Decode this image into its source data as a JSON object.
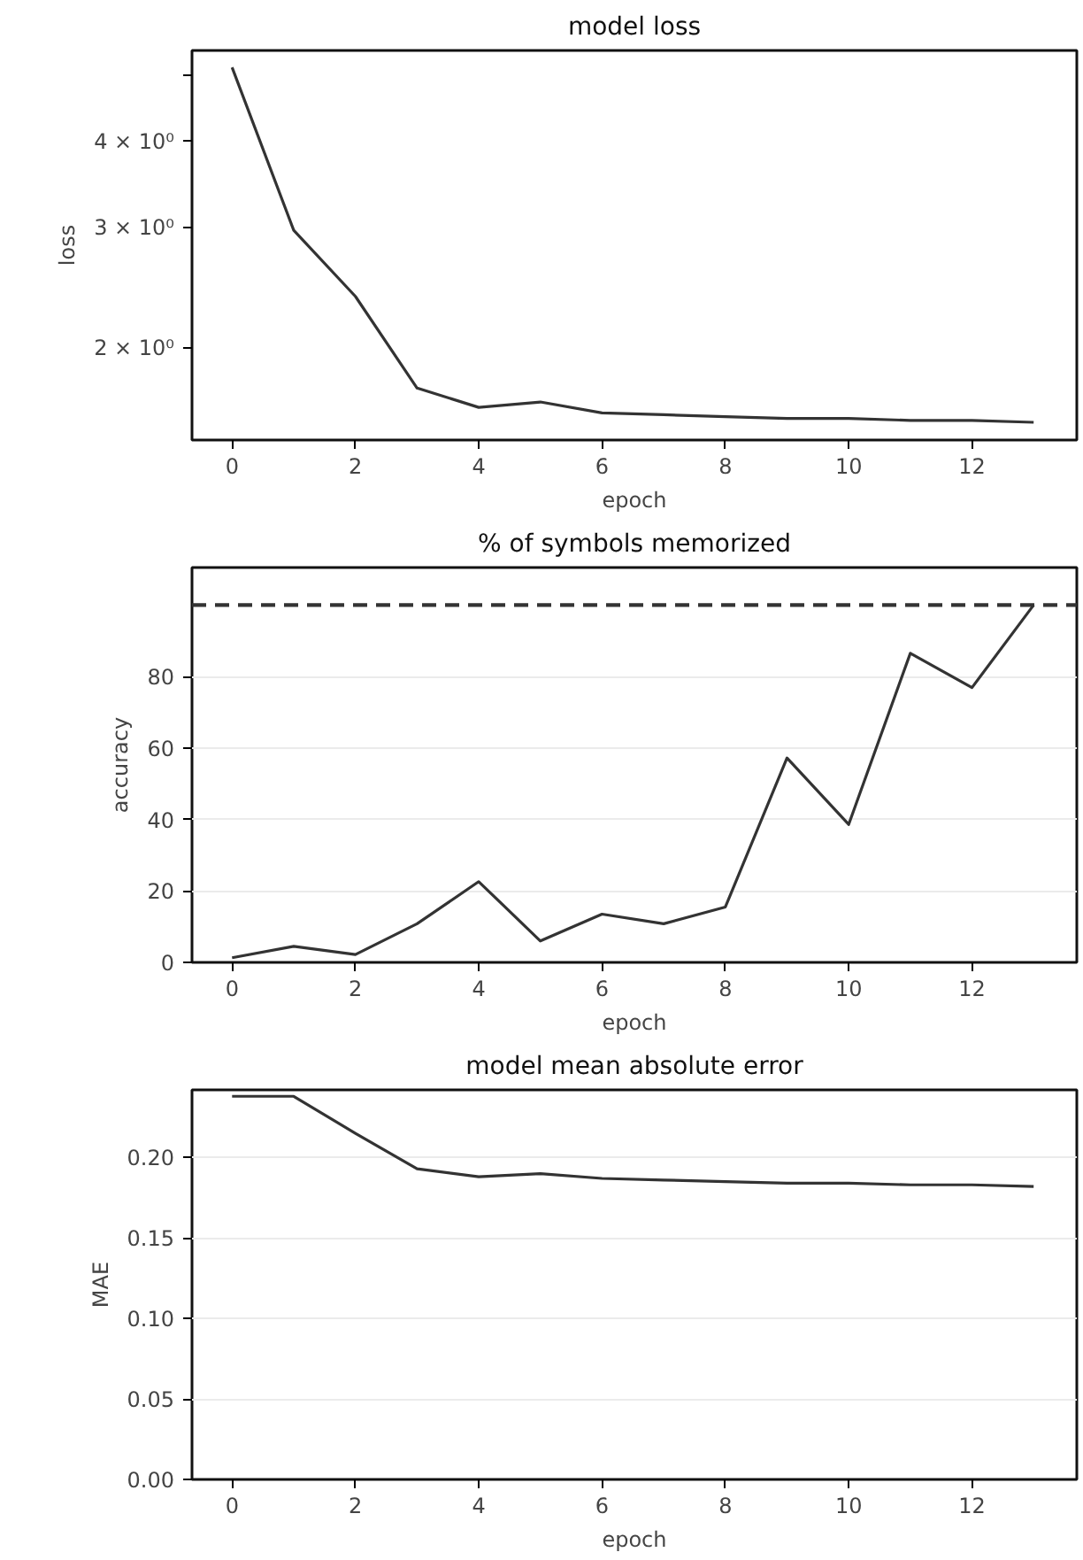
{
  "chart_data": [
    {
      "type": "line",
      "title": "model loss",
      "xlabel": "epoch",
      "ylabel": "loss",
      "log": "y",
      "grid": false,
      "x": [
        0,
        1,
        2,
        3,
        4,
        5,
        6,
        7,
        8,
        9,
        10,
        11,
        12,
        13
      ],
      "series": [
        {
          "color": "#333333",
          "values": [
            5.13,
            2.97,
            2.38,
            1.75,
            1.64,
            1.67,
            1.61,
            1.6,
            1.59,
            1.58,
            1.58,
            1.57,
            1.57,
            1.56
          ]
        }
      ],
      "xlim": [
        -0.65,
        13.7
      ],
      "xticks": [
        0,
        2,
        4,
        6,
        8,
        10,
        12
      ],
      "ylim": [
        1.47,
        5.43
      ],
      "yticks": [
        {
          "value": 2,
          "label": "2 × 10⁰"
        },
        {
          "value": 3,
          "label": "3 × 10⁰"
        },
        {
          "value": 4,
          "label": "4 × 10⁰"
        },
        {
          "value": 5,
          "label": null
        }
      ]
    },
    {
      "type": "line",
      "title": "% of symbols memorized",
      "xlabel": "epoch",
      "ylabel": "accuracy",
      "grid": "y",
      "x": [
        0,
        1,
        2,
        3,
        4,
        5,
        6,
        7,
        8,
        9,
        10,
        11,
        12,
        13
      ],
      "series": [
        {
          "color": "#333333",
          "values": [
            1.3,
            4.5,
            2.2,
            10.8,
            22.6,
            6,
            13.5,
            10.8,
            15.5,
            57.2,
            38.6,
            86.5,
            76.9,
            100
          ]
        }
      ],
      "xlim": [
        -0.65,
        13.7
      ],
      "xticks": [
        0,
        2,
        4,
        6,
        8,
        10,
        12
      ],
      "ylim": [
        0,
        110.5
      ],
      "yticks": [
        0,
        20,
        40,
        60,
        80
      ],
      "ref_lines": [
        {
          "axis": "y",
          "value": 100,
          "color": "#333333",
          "line_style": "dashed"
        }
      ]
    },
    {
      "type": "line",
      "title": "model mean absolute error",
      "xlabel": "epoch",
      "ylabel": "MAE",
      "grid": "y",
      "x": [
        0,
        1,
        2,
        3,
        4,
        5,
        6,
        7,
        8,
        9,
        10,
        11,
        12,
        13
      ],
      "series": [
        {
          "color": "#333333",
          "values": [
            0.238,
            0.238,
            0.215,
            0.193,
            0.188,
            0.19,
            0.187,
            0.186,
            0.185,
            0.184,
            0.184,
            0.183,
            0.183,
            0.182
          ]
        }
      ],
      "xlim": [
        -0.65,
        13.7
      ],
      "xticks": [
        0,
        2,
        4,
        6,
        8,
        10,
        12
      ],
      "ylim": [
        0,
        0.242
      ],
      "yticks": [
        {
          "value": 0,
          "label": "0.00"
        },
        {
          "value": 0.05,
          "label": "0.05"
        },
        {
          "value": 0.1,
          "label": "0.10"
        },
        {
          "value": 0.15,
          "label": "0.15"
        },
        {
          "value": 0.2,
          "label": "0.20"
        }
      ]
    }
  ]
}
